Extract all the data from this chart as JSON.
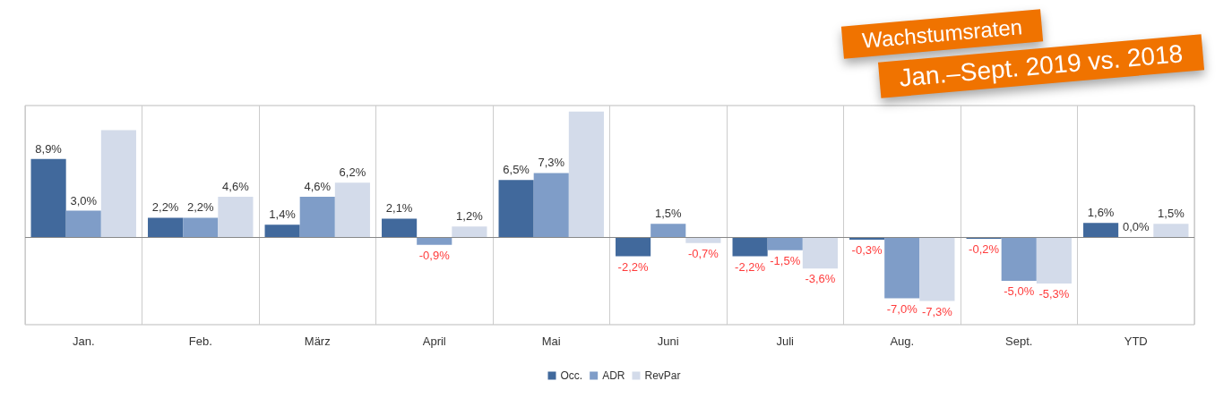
{
  "chart_data": {
    "type": "bar",
    "title": "Wachstumsraten",
    "subtitle": "Jan.–Sept. 2019 vs. 2018",
    "categories": [
      "Jan.",
      "Feb.",
      "März",
      "April",
      "Mai",
      "Juni",
      "Juli",
      "Aug.",
      "Sept.",
      "YTD"
    ],
    "series": [
      {
        "name": "Occ.",
        "color": "#41699c",
        "values": [
          8.9,
          2.2,
          1.4,
          2.1,
          6.5,
          -2.2,
          -2.2,
          -0.3,
          -0.2,
          1.6
        ],
        "value_labels": [
          "8,9%",
          "2,2%",
          "1,4%",
          "2,1%",
          "6,5%",
          "-2,2%",
          "-2,2%",
          "-0,3%",
          "-0,2%",
          "1,6%"
        ]
      },
      {
        "name": "ADR",
        "color": "#7f9dc8",
        "values": [
          3.0,
          2.2,
          4.6,
          -0.9,
          7.3,
          1.5,
          -1.5,
          -7.0,
          -5.0,
          0.0
        ],
        "value_labels": [
          "3,0%",
          "2,2%",
          "4,6%",
          "-0,9%",
          "7,3%",
          "1,5%",
          "-1,5%",
          "-7,0%",
          "-5,0%",
          "0,0%"
        ]
      },
      {
        "name": "RevPar",
        "color": "#d3dbea",
        "values": [
          12.2,
          4.6,
          6.2,
          1.2,
          14.3,
          -0.7,
          -3.6,
          -7.3,
          -5.3,
          1.5
        ],
        "value_labels": [
          null,
          "4,6%",
          "6,2%",
          "1,2%",
          null,
          "-0,7%",
          "-3,6%",
          "-7,3%",
          "-5,3%",
          "1,5%"
        ]
      }
    ],
    "grid": "x",
    "legend": "bottom",
    "tick_labels": "x"
  }
}
